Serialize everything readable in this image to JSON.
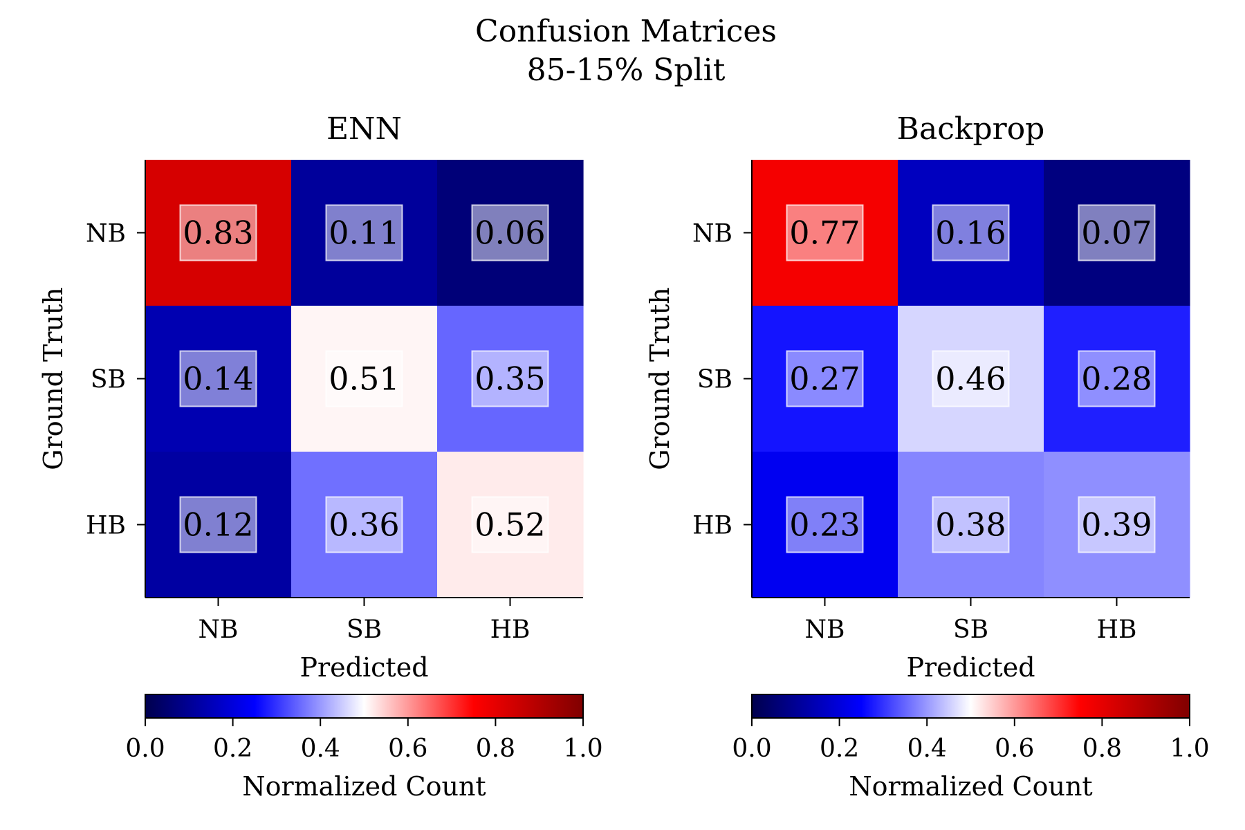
{
  "figure": {
    "title_line1": "Confusion Matrices",
    "title_line2": "85-15% Split"
  },
  "colormap": {
    "name": "seismic",
    "stops": [
      "#00004d",
      "#0000ff",
      "#ffffff",
      "#ff0000",
      "#800000"
    ]
  },
  "chart_data": [
    {
      "type": "heatmap",
      "title": "ENN",
      "xlabel": "Predicted",
      "ylabel": "Ground Truth",
      "x_categories": [
        "NB",
        "SB",
        "HB"
      ],
      "y_categories": [
        "NB",
        "SB",
        "HB"
      ],
      "values": [
        [
          0.83,
          0.11,
          0.06
        ],
        [
          0.14,
          0.51,
          0.35
        ],
        [
          0.12,
          0.36,
          0.52
        ]
      ],
      "value_labels": [
        [
          "0.83",
          "0.11",
          "0.06"
        ],
        [
          "0.14",
          "0.51",
          "0.35"
        ],
        [
          "0.12",
          "0.36",
          "0.52"
        ]
      ],
      "colorbar": {
        "label": "Normalized Count",
        "range": [
          0.0,
          1.0
        ],
        "ticks": [
          "0.0",
          "0.2",
          "0.4",
          "0.6",
          "0.8",
          "1.0"
        ],
        "orientation": "horizontal"
      }
    },
    {
      "type": "heatmap",
      "title": "Backprop",
      "xlabel": "Predicted",
      "ylabel": "Ground Truth",
      "x_categories": [
        "NB",
        "SB",
        "HB"
      ],
      "y_categories": [
        "NB",
        "SB",
        "HB"
      ],
      "values": [
        [
          0.77,
          0.16,
          0.07
        ],
        [
          0.27,
          0.46,
          0.28
        ],
        [
          0.23,
          0.38,
          0.39
        ]
      ],
      "value_labels": [
        [
          "0.77",
          "0.16",
          "0.07"
        ],
        [
          "0.27",
          "0.46",
          "0.28"
        ],
        [
          "0.23",
          "0.38",
          "0.39"
        ]
      ],
      "colorbar": {
        "label": "Normalized Count",
        "range": [
          0.0,
          1.0
        ],
        "ticks": [
          "0.0",
          "0.2",
          "0.4",
          "0.6",
          "0.8",
          "1.0"
        ],
        "orientation": "horizontal"
      }
    }
  ]
}
